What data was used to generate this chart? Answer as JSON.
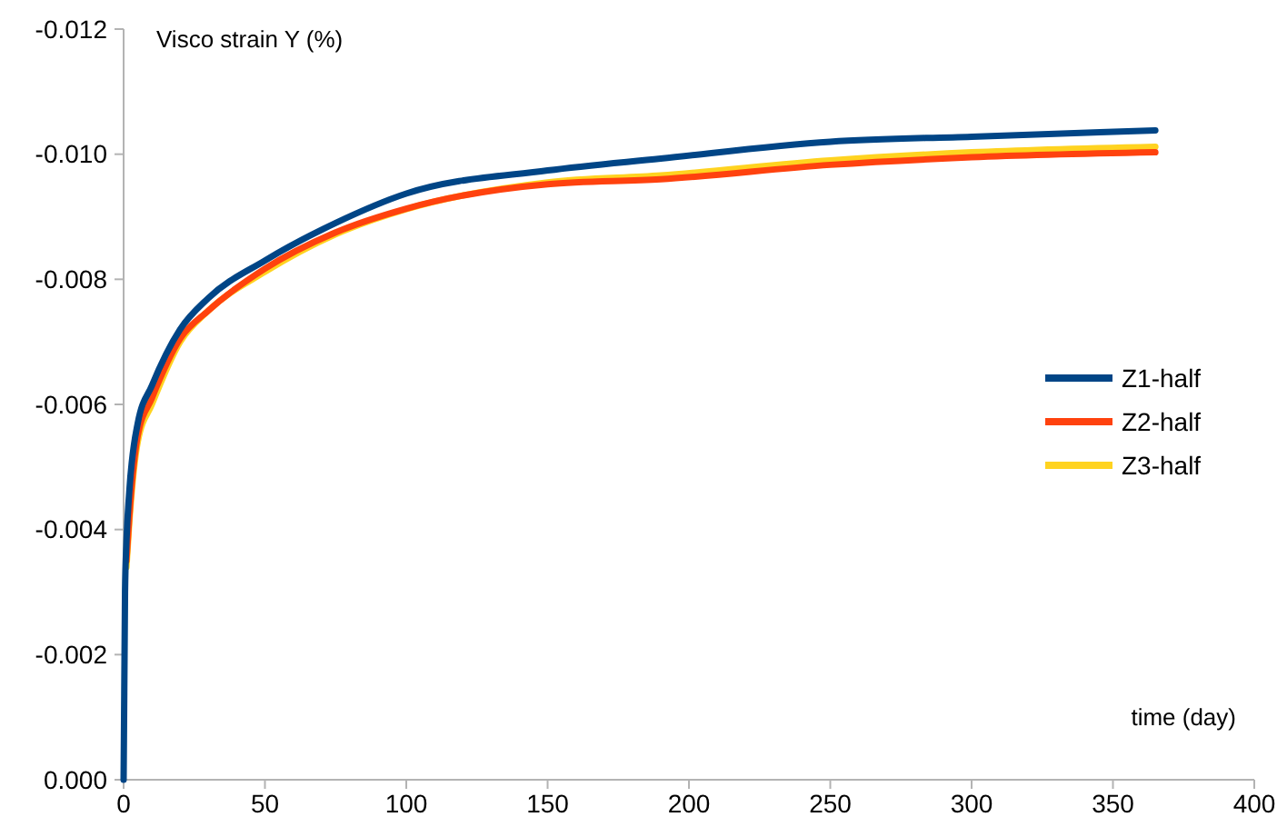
{
  "chart_data": {
    "type": "line",
    "xlabel": "time (day)",
    "ylabel": "Visco strain Y (%)",
    "x": [
      0,
      0.5,
      1,
      2,
      5,
      10,
      20,
      30,
      50,
      75,
      100,
      150,
      190,
      250,
      300,
      365
    ],
    "series": [
      {
        "name": "Z1-half",
        "color": "#004586",
        "values": [
          0,
          -0.003,
          -0.0038,
          -0.0046,
          -0.0057,
          -0.0063,
          -0.0072,
          -0.0077,
          -0.0083,
          -0.0089,
          -0.00937,
          -0.00974,
          -0.00993,
          -0.0102,
          -0.01028,
          -0.01038
        ]
      },
      {
        "name": "Z2-half",
        "color": "#ff420e",
        "values": [
          null,
          null,
          -0.0035,
          -0.0042,
          -0.0055,
          -0.0061,
          -0.00705,
          -0.0075,
          -0.00817,
          -0.00875,
          -0.00913,
          -0.00952,
          -0.0096,
          -0.00983,
          -0.00995,
          -0.01003
        ]
      },
      {
        "name": "Z3-half",
        "color": "#ffd320",
        "values": [
          null,
          null,
          -0.0034,
          -0.0041,
          -0.0054,
          -0.006,
          -0.007,
          -0.0075,
          -0.00812,
          -0.00872,
          -0.00912,
          -0.00955,
          -0.00966,
          -0.0099,
          -0.01003,
          -0.01012
        ]
      }
    ],
    "xlim": [
      0,
      400
    ],
    "xticks": [
      0,
      50,
      100,
      150,
      200,
      250,
      300,
      350,
      400
    ],
    "ylim": [
      0,
      -0.012
    ],
    "yticks": [
      {
        "value": 0,
        "label": "0.000"
      },
      {
        "value": -0.002,
        "label": "-0.002"
      },
      {
        "value": -0.004,
        "label": "-0.004"
      },
      {
        "value": -0.006,
        "label": "-0.006"
      },
      {
        "value": -0.008,
        "label": "-0.008"
      },
      {
        "value": -0.01,
        "label": "-0.010"
      },
      {
        "value": -0.012,
        "label": "-0.012"
      }
    ],
    "grid": false,
    "legend": "right",
    "line_style": "solid",
    "marker": "none"
  }
}
